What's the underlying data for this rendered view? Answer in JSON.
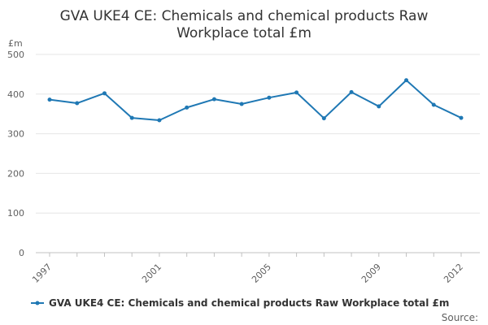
{
  "chart_data": {
    "type": "line",
    "title_lines": [
      "GVA UKE4 CE: Chemicals and chemical products Raw",
      "Workplace total £m"
    ],
    "unit": "£m",
    "x": [
      1997,
      1998,
      1999,
      2000,
      2001,
      2002,
      2003,
      2004,
      2005,
      2006,
      2007,
      2008,
      2009,
      2010,
      2011,
      2012
    ],
    "x_tick_labels": [
      "1997",
      "2001",
      "2005",
      "2009",
      "2012"
    ],
    "y_ticks": [
      0,
      100,
      200,
      300,
      400,
      500
    ],
    "ylim": [
      0,
      500
    ],
    "grid": true,
    "series": [
      {
        "name": "GVA UKE4 CE: Chemicals and chemical products Raw Workplace total £m",
        "color": "#1f78b4",
        "values": [
          386,
          377,
          402,
          340,
          334,
          366,
          387,
          375,
          391,
          404,
          339,
          405,
          369,
          435,
          373,
          340
        ]
      }
    ],
    "legend_position": "bottom-left",
    "source": "Source:"
  }
}
